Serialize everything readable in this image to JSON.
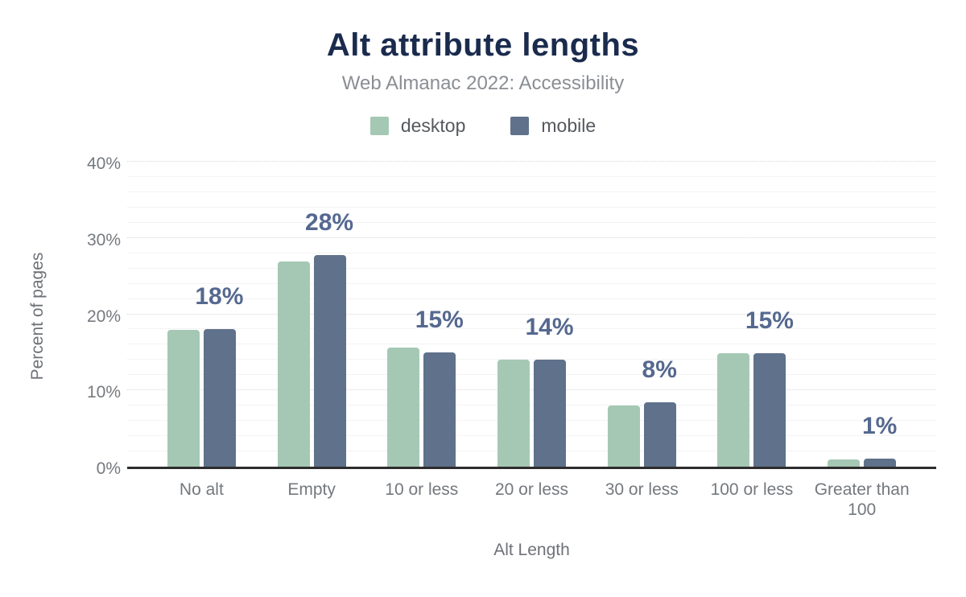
{
  "chart_data": {
    "type": "bar",
    "title": "Alt attribute lengths",
    "subtitle": "Web Almanac 2022: Accessibility",
    "xlabel": "Alt Length",
    "ylabel": "Percent of pages",
    "categories": [
      "No alt",
      "Empty",
      "10 or less",
      "20 or less",
      "30 or less",
      "100 or less",
      "Greater than 100"
    ],
    "series": [
      {
        "name": "desktop",
        "color": "#a5c8b4",
        "values": [
          17.9,
          26.9,
          15.6,
          14.0,
          8.0,
          14.9,
          1.0
        ]
      },
      {
        "name": "mobile",
        "color": "#5f718b",
        "values": [
          18.0,
          27.8,
          15.0,
          14.0,
          8.4,
          14.9,
          1.1
        ]
      }
    ],
    "value_labels": [
      "18%",
      "28%",
      "15%",
      "14%",
      "8%",
      "15%",
      "1%"
    ],
    "y_ticks": [
      {
        "value": 0,
        "label": "0%"
      },
      {
        "value": 10,
        "label": "10%"
      },
      {
        "value": 20,
        "label": "20%"
      },
      {
        "value": 30,
        "label": "30%"
      },
      {
        "value": 40,
        "label": "40%"
      }
    ],
    "ylim": [
      0,
      40
    ],
    "grid": {
      "minor_step": 2,
      "major_step": 10,
      "gridlines_on": true
    },
    "legend_position": "top",
    "colors": {
      "title": "#1a2b4d",
      "subtitle": "#8a8e93",
      "value_label": "#55688f",
      "axis_line": "#2d2d2d",
      "tick_text": "#75797e"
    }
  }
}
